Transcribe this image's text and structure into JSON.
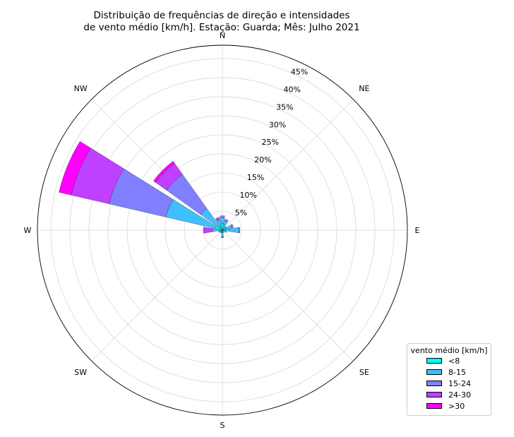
{
  "chart_data": {
    "type": "windrose",
    "title": "Distribuição de frequências de direção e intensidades\nde vento médio [km/h]. Estação: Guarda; Mês: Julho 2021",
    "title_lines": [
      "Distribuição de frequências de direção e intensidades",
      "de vento médio [km/h]. Estação: Guarda; Mês: Julho 2021"
    ],
    "direction_labels": [
      "N",
      "NE",
      "E",
      "SE",
      "S",
      "SW",
      "W",
      "NW"
    ],
    "radial_ticks": [
      "5%",
      "10%",
      "15%",
      "20%",
      "25%",
      "30%",
      "35%",
      "40%",
      "45%"
    ],
    "r_max": 48.5,
    "directions": [
      "N",
      "NNE",
      "NE",
      "ENE",
      "E",
      "ESE",
      "SE",
      "SSE",
      "S",
      "SSW",
      "SW",
      "WSW",
      "W",
      "WNW",
      "NW",
      "NNW"
    ],
    "series": [
      {
        "name": "<8",
        "color": "#00ffff",
        "values": [
          1.8,
          1.5,
          0.8,
          1.0,
          1.8,
          0.8,
          0.4,
          0.5,
          0.8,
          0.5,
          0.6,
          0.6,
          1.0,
          2.0,
          0.8,
          1.2
        ]
      },
      {
        "name": "8-15",
        "color": "#40bfff",
        "values": [
          1.5,
          1.0,
          0.5,
          1.5,
          2.5,
          0.4,
          0.0,
          0.3,
          1.0,
          0.3,
          0.3,
          0.4,
          1.5,
          13.2,
          6.2,
          1.5
        ]
      },
      {
        "name": "15-24",
        "color": "#7f7fff",
        "values": [
          0.5,
          0.5,
          0.0,
          0.5,
          0.3,
          0.0,
          0.0,
          0.0,
          0.2,
          0.0,
          0.0,
          0.0,
          0.0,
          15.3,
          11.0,
          0.5
        ]
      },
      {
        "name": "24-30",
        "color": "#bf40ff",
        "values": [
          0.0,
          0.0,
          0.0,
          0.0,
          0.0,
          0.0,
          0.0,
          0.0,
          0.0,
          0.0,
          0.0,
          0.0,
          2.5,
          10.2,
          3.5,
          0.3
        ]
      },
      {
        "name": ">30",
        "color": "#ff00ff",
        "values": [
          0.0,
          0.0,
          0.0,
          0.0,
          0.0,
          0.0,
          0.0,
          0.0,
          0.0,
          0.0,
          0.0,
          0.0,
          0.0,
          3.3,
          0.7,
          0.0
        ]
      }
    ],
    "legend_title": "vento médio [km/h]",
    "legend_position": "lower-right",
    "grid": true
  }
}
